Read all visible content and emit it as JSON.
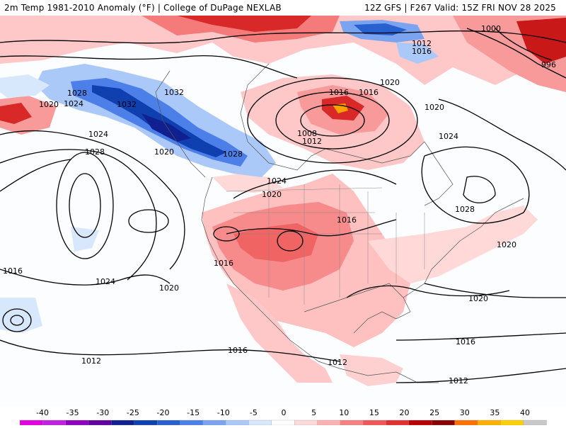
{
  "header": {
    "title_left": "2m Temp 1981-2010 Anomaly (°F) | College of DuPage NEXLAB",
    "title_right": "12Z GFS | F267 Valid: 15Z FRI NOV 28 2025"
  },
  "isobar_labels": [
    "1028",
    "1024",
    "1020",
    "1032",
    "1032",
    "1024",
    "1028",
    "1020",
    "1028",
    "1024",
    "1016",
    "1008",
    "1012",
    "1020",
    "1016",
    "1016",
    "1012",
    "1000",
    "996",
    "1020",
    "1024",
    "1028",
    "1020",
    "1016",
    "1024",
    "1020",
    "1016",
    "1016",
    "1012",
    "1012",
    "1020",
    "1020",
    "1016",
    "1016",
    "1012"
  ],
  "legend": {
    "ticks": [
      "-40",
      "-35",
      "-30",
      "-25",
      "-20",
      "-15",
      "-10",
      "-5",
      "0",
      "5",
      "10",
      "15",
      "20",
      "25",
      "30",
      "35",
      "40"
    ],
    "colors": [
      "#e000e0",
      "#c020e0",
      "#9000c0",
      "#6000a0",
      "#102090",
      "#1040b0",
      "#2860d0",
      "#4c80e8",
      "#7aa4f0",
      "#aac8f8",
      "#d8e8fc",
      "#ffffff",
      "#ffd8d8",
      "#ffb0b0",
      "#f88080",
      "#f05858",
      "#e03030",
      "#b80000",
      "#8a0000",
      "#ff7000",
      "#ffb000",
      "#ffd000",
      "#c8c8c8"
    ]
  }
}
